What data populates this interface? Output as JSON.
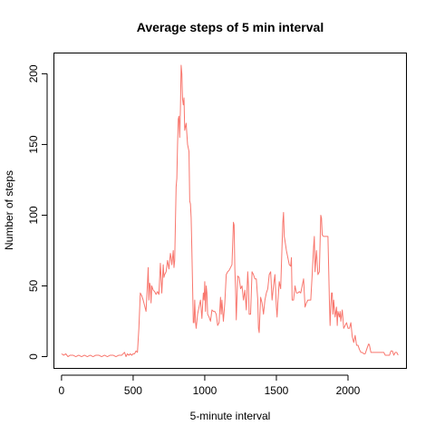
{
  "chart_data": {
    "type": "line",
    "title": "Average steps of 5 min interval",
    "xlabel": "5-minute interval",
    "ylabel": "Number of steps",
    "xlim": [
      -50,
      2405
    ],
    "ylim": [
      -8,
      215
    ],
    "xticks": [
      0,
      500,
      1000,
      1500,
      2000
    ],
    "yticks": [
      0,
      50,
      100,
      150,
      200
    ],
    "grid": false,
    "line_color": "#F8766D",
    "series": [
      {
        "values": [
          [
            0,
            2
          ],
          [
            15,
            1
          ],
          [
            30,
            2
          ],
          [
            45,
            0
          ],
          [
            60,
            1
          ],
          [
            80,
            1
          ],
          [
            100,
            0
          ],
          [
            120,
            1
          ],
          [
            140,
            0
          ],
          [
            160,
            1
          ],
          [
            180,
            0
          ],
          [
            200,
            1
          ],
          [
            220,
            0
          ],
          [
            240,
            1
          ],
          [
            260,
            1
          ],
          [
            280,
            0
          ],
          [
            300,
            1
          ],
          [
            320,
            0
          ],
          [
            340,
            1
          ],
          [
            360,
            1
          ],
          [
            380,
            0
          ],
          [
            400,
            1
          ],
          [
            420,
            1
          ],
          [
            440,
            3
          ],
          [
            450,
            0
          ],
          [
            460,
            2
          ],
          [
            470,
            1
          ],
          [
            480,
            2
          ],
          [
            490,
            1
          ],
          [
            500,
            2
          ],
          [
            510,
            2
          ],
          [
            520,
            4
          ],
          [
            530,
            3
          ],
          [
            540,
            20
          ],
          [
            550,
            45
          ],
          [
            560,
            43
          ],
          [
            570,
            40
          ],
          [
            580,
            36
          ],
          [
            590,
            32
          ],
          [
            600,
            52
          ],
          [
            605,
            63
          ],
          [
            610,
            40
          ],
          [
            615,
            52
          ],
          [
            620,
            50
          ],
          [
            625,
            38
          ],
          [
            630,
            50
          ],
          [
            640,
            47
          ],
          [
            650,
            46
          ],
          [
            660,
            44
          ],
          [
            670,
            46
          ],
          [
            680,
            44
          ],
          [
            690,
            66
          ],
          [
            700,
            45
          ],
          [
            710,
            65
          ],
          [
            715,
            56
          ],
          [
            720,
            58
          ],
          [
            730,
            60
          ],
          [
            740,
            68
          ],
          [
            750,
            62
          ],
          [
            760,
            73
          ],
          [
            765,
            70
          ],
          [
            770,
            65
          ],
          [
            780,
            75
          ],
          [
            785,
            63
          ],
          [
            790,
            68
          ],
          [
            800,
            120
          ],
          [
            805,
            126
          ],
          [
            810,
            150
          ],
          [
            815,
            168
          ],
          [
            820,
            170
          ],
          [
            825,
            155
          ],
          [
            830,
            175
          ],
          [
            835,
            206
          ],
          [
            840,
            200
          ],
          [
            845,
            182
          ],
          [
            850,
            178
          ],
          [
            855,
            183
          ],
          [
            860,
            160
          ],
          [
            870,
            165
          ],
          [
            880,
            150
          ],
          [
            890,
            145
          ],
          [
            895,
            110
          ],
          [
            900,
            108
          ],
          [
            905,
            98
          ],
          [
            910,
            75
          ],
          [
            915,
            50
          ],
          [
            920,
            24
          ],
          [
            925,
            24
          ],
          [
            930,
            40
          ],
          [
            935,
            25
          ],
          [
            940,
            20
          ],
          [
            950,
            30
          ],
          [
            960,
            35
          ],
          [
            970,
            40
          ],
          [
            980,
            27
          ],
          [
            990,
            45
          ],
          [
            995,
            40
          ],
          [
            1000,
            53
          ],
          [
            1005,
            32
          ],
          [
            1010,
            50
          ],
          [
            1015,
            45
          ],
          [
            1020,
            30
          ],
          [
            1030,
            28
          ],
          [
            1040,
            25
          ],
          [
            1050,
            33
          ],
          [
            1060,
            32
          ],
          [
            1070,
            32
          ],
          [
            1080,
            30
          ],
          [
            1090,
            22
          ],
          [
            1100,
            24
          ],
          [
            1110,
            42
          ],
          [
            1115,
            30
          ],
          [
            1120,
            40
          ],
          [
            1130,
            25
          ],
          [
            1140,
            38
          ],
          [
            1150,
            58
          ],
          [
            1160,
            60
          ],
          [
            1170,
            61
          ],
          [
            1180,
            63
          ],
          [
            1190,
            65
          ],
          [
            1195,
            80
          ],
          [
            1200,
            95
          ],
          [
            1205,
            93
          ],
          [
            1210,
            62
          ],
          [
            1215,
            48
          ],
          [
            1220,
            26
          ],
          [
            1230,
            57
          ],
          [
            1240,
            56
          ],
          [
            1250,
            48
          ],
          [
            1260,
            50
          ],
          [
            1270,
            40
          ],
          [
            1280,
            47
          ],
          [
            1290,
            33
          ],
          [
            1300,
            60
          ],
          [
            1305,
            50
          ],
          [
            1310,
            30
          ],
          [
            1320,
            30
          ],
          [
            1330,
            60
          ],
          [
            1340,
            58
          ],
          [
            1350,
            55
          ],
          [
            1360,
            55
          ],
          [
            1370,
            40
          ],
          [
            1375,
            20
          ],
          [
            1380,
            17
          ],
          [
            1390,
            42
          ],
          [
            1400,
            38
          ],
          [
            1410,
            30
          ],
          [
            1420,
            40
          ],
          [
            1430,
            45
          ],
          [
            1440,
            48
          ],
          [
            1450,
            58
          ],
          [
            1460,
            60
          ],
          [
            1470,
            40
          ],
          [
            1480,
            50
          ],
          [
            1490,
            58
          ],
          [
            1500,
            35
          ],
          [
            1505,
            28
          ],
          [
            1510,
            38
          ],
          [
            1520,
            53
          ],
          [
            1530,
            48
          ],
          [
            1540,
            80
          ],
          [
            1545,
            95
          ],
          [
            1550,
            102
          ],
          [
            1555,
            85
          ],
          [
            1560,
            82
          ],
          [
            1570,
            75
          ],
          [
            1580,
            70
          ],
          [
            1590,
            65
          ],
          [
            1600,
            64
          ],
          [
            1605,
            70
          ],
          [
            1610,
            40
          ],
          [
            1620,
            40
          ],
          [
            1630,
            50
          ],
          [
            1640,
            45
          ],
          [
            1650,
            45
          ],
          [
            1660,
            46
          ],
          [
            1670,
            45
          ],
          [
            1680,
            50
          ],
          [
            1690,
            55
          ],
          [
            1700,
            35
          ],
          [
            1710,
            38
          ],
          [
            1720,
            40
          ],
          [
            1730,
            40
          ],
          [
            1740,
            40
          ],
          [
            1750,
            58
          ],
          [
            1760,
            78
          ],
          [
            1765,
            85
          ],
          [
            1770,
            60
          ],
          [
            1780,
            75
          ],
          [
            1790,
            58
          ],
          [
            1800,
            60
          ],
          [
            1805,
            80
          ],
          [
            1810,
            100
          ],
          [
            1815,
            98
          ],
          [
            1820,
            86
          ],
          [
            1830,
            85
          ],
          [
            1840,
            85
          ],
          [
            1850,
            85
          ],
          [
            1860,
            85
          ],
          [
            1870,
            40
          ],
          [
            1875,
            22
          ],
          [
            1880,
            35
          ],
          [
            1885,
            45
          ],
          [
            1890,
            45
          ],
          [
            1895,
            30
          ],
          [
            1900,
            40
          ],
          [
            1910,
            28
          ],
          [
            1920,
            35
          ],
          [
            1925,
            22
          ],
          [
            1930,
            32
          ],
          [
            1940,
            28
          ],
          [
            1945,
            32
          ],
          [
            1950,
            25
          ],
          [
            1960,
            33
          ],
          [
            1970,
            20
          ],
          [
            1980,
            22
          ],
          [
            1990,
            24
          ],
          [
            2000,
            20
          ],
          [
            2010,
            20
          ],
          [
            2020,
            24
          ],
          [
            2030,
            14
          ],
          [
            2040,
            10
          ],
          [
            2050,
            15
          ],
          [
            2060,
            8
          ],
          [
            2070,
            8
          ],
          [
            2080,
            5
          ],
          [
            2090,
            3
          ],
          [
            2100,
            3
          ],
          [
            2110,
            2
          ],
          [
            2120,
            2
          ],
          [
            2130,
            5
          ],
          [
            2140,
            8
          ],
          [
            2145,
            9
          ],
          [
            2150,
            8
          ],
          [
            2160,
            3
          ],
          [
            2170,
            3
          ],
          [
            2180,
            3
          ],
          [
            2190,
            3
          ],
          [
            2200,
            3
          ],
          [
            2210,
            3
          ],
          [
            2220,
            3
          ],
          [
            2230,
            3
          ],
          [
            2240,
            3
          ],
          [
            2250,
            3
          ],
          [
            2255,
            2
          ],
          [
            2260,
            1
          ],
          [
            2270,
            1
          ],
          [
            2280,
            1
          ],
          [
            2290,
            1
          ],
          [
            2300,
            4
          ],
          [
            2310,
            4
          ],
          [
            2320,
            1
          ],
          [
            2330,
            3
          ],
          [
            2340,
            3
          ],
          [
            2345,
            2
          ],
          [
            2350,
            1
          ]
        ]
      }
    ]
  }
}
